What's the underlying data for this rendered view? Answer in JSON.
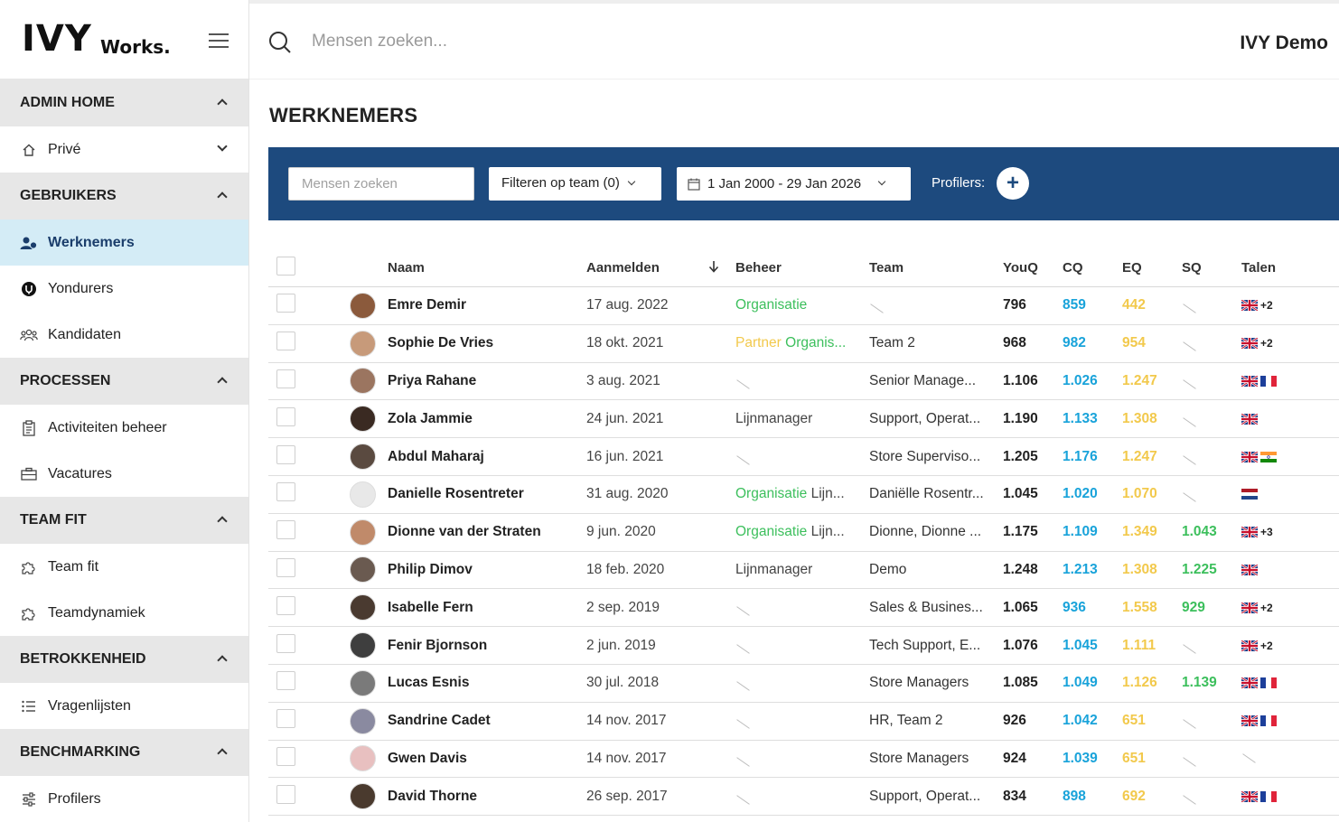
{
  "app": {
    "logo_main": "IVY",
    "logo_sub": "Works."
  },
  "topbar": {
    "search_placeholder": "Mensen zoeken...",
    "user": "IVY Demo"
  },
  "sidebar": {
    "sections": [
      {
        "title": "ADMIN HOME",
        "items": [
          {
            "label": "Privé",
            "icon": "home-icon"
          }
        ]
      },
      {
        "title": "GEBRUIKERS",
        "items": [
          {
            "label": "Werknemers",
            "icon": "users-icon",
            "active": true
          },
          {
            "label": "Yondurers",
            "icon": "yondurer-icon"
          },
          {
            "label": "Kandidaten",
            "icon": "group-icon"
          }
        ]
      },
      {
        "title": "PROCESSEN",
        "items": [
          {
            "label": "Activiteiten beheer",
            "icon": "clipboard-icon"
          },
          {
            "label": "Vacatures",
            "icon": "briefcase-icon"
          }
        ]
      },
      {
        "title": "TEAM FIT",
        "items": [
          {
            "label": "Team fit",
            "icon": "puzzle-icon"
          },
          {
            "label": "Teamdynamiek",
            "icon": "puzzle-icon"
          }
        ]
      },
      {
        "title": "BETROKKENHEID",
        "items": [
          {
            "label": "Vragenlijsten",
            "icon": "list-icon"
          }
        ]
      },
      {
        "title": "BENCHMARKING",
        "items": [
          {
            "label": "Profilers",
            "icon": "sliders-icon"
          }
        ]
      }
    ]
  },
  "page": {
    "title": "WERKNEMERS"
  },
  "filters": {
    "search_placeholder": "Mensen zoeken",
    "team_label": "Filteren op team (0)",
    "date_range": "1 Jan 2000 - 29 Jan 2026",
    "profilers_label": "Profilers:",
    "add_label": "+"
  },
  "table": {
    "headers": {
      "name": "Naam",
      "signup": "Aanmelden",
      "beheer": "Beheer",
      "team": "Team",
      "youq": "YouQ",
      "cq": "CQ",
      "eq": "EQ",
      "sq": "SQ",
      "talen": "Talen"
    },
    "rows": [
      {
        "name": "Emre Demir",
        "date": "17 aug. 2022",
        "beheer": [
          {
            "t": "Organisatie",
            "c": "green"
          }
        ],
        "team": "",
        "youq": "796",
        "cq": "859",
        "eq": "442",
        "sq": "",
        "flags": [
          "gb"
        ],
        "extra": "+2",
        "avatar": "#8b5a3c"
      },
      {
        "name": "Sophie De Vries",
        "date": "18 okt. 2021",
        "beheer": [
          {
            "t": "Partner ",
            "c": "yellow"
          },
          {
            "t": "Organis...",
            "c": "green"
          }
        ],
        "team": "Team 2",
        "youq": "968",
        "cq": "982",
        "eq": "954",
        "sq": "",
        "flags": [
          "gb"
        ],
        "extra": "+2",
        "avatar": "#c79a7a"
      },
      {
        "name": "Priya Rahane",
        "date": "3 aug. 2021",
        "beheer": [],
        "team": "Senior Manage...",
        "youq": "1.106",
        "cq": "1.026",
        "eq": "1.247",
        "sq": "",
        "flags": [
          "gb",
          "fr"
        ],
        "extra": "",
        "avatar": "#9b7560"
      },
      {
        "name": "Zola Jammie",
        "date": "24 jun. 2021",
        "beheer": [
          {
            "t": "Lijnmanager",
            "c": ""
          }
        ],
        "team": "Support, Operat...",
        "youq": "1.190",
        "cq": "1.133",
        "eq": "1.308",
        "sq": "",
        "flags": [
          "gb"
        ],
        "extra": "",
        "avatar": "#3a2a22"
      },
      {
        "name": "Abdul Maharaj",
        "date": "16 jun. 2021",
        "beheer": [],
        "team": "Store Superviso...",
        "youq": "1.205",
        "cq": "1.176",
        "eq": "1.247",
        "sq": "",
        "flags": [
          "gb",
          "in"
        ],
        "extra": "",
        "avatar": "#5a4a40"
      },
      {
        "name": "Danielle Rosentreter",
        "date": "31 aug. 2020",
        "beheer": [
          {
            "t": "Organisatie ",
            "c": "green"
          },
          {
            "t": "Lijn...",
            "c": ""
          }
        ],
        "team": "Daniëlle Rosentr...",
        "youq": "1.045",
        "cq": "1.020",
        "eq": "1.070",
        "sq": "",
        "flags": [
          "nl"
        ],
        "extra": "",
        "avatar": "#e8e8e8"
      },
      {
        "name": "Dionne van der Straten",
        "date": "9 jun. 2020",
        "beheer": [
          {
            "t": "Organisatie ",
            "c": "green"
          },
          {
            "t": "Lijn...",
            "c": ""
          }
        ],
        "team": "Dionne, Dionne ...",
        "youq": "1.175",
        "cq": "1.109",
        "eq": "1.349",
        "sq": "1.043",
        "flags": [
          "gb"
        ],
        "extra": "+3",
        "avatar": "#c08a6a"
      },
      {
        "name": "Philip Dimov",
        "date": "18 feb. 2020",
        "beheer": [
          {
            "t": "Lijnmanager",
            "c": ""
          }
        ],
        "team": "Demo",
        "youq": "1.248",
        "cq": "1.213",
        "eq": "1.308",
        "sq": "1.225",
        "flags": [
          "gb"
        ],
        "extra": "",
        "avatar": "#6a5a50"
      },
      {
        "name": "Isabelle Fern",
        "date": "2 sep. 2019",
        "beheer": [],
        "team": "Sales & Busines...",
        "youq": "1.065",
        "cq": "936",
        "eq": "1.558",
        "sq": "929",
        "flags": [
          "gb"
        ],
        "extra": "+2",
        "avatar": "#4a3a30"
      },
      {
        "name": "Fenir Bjornson",
        "date": "2 jun. 2019",
        "beheer": [],
        "team": "Tech Support, E...",
        "youq": "1.076",
        "cq": "1.045",
        "eq": "1.111",
        "sq": "",
        "flags": [
          "gb"
        ],
        "extra": "+2",
        "avatar": "#3e3e3e"
      },
      {
        "name": "Lucas Esnis",
        "date": "30 jul. 2018",
        "beheer": [],
        "team": "Store Managers",
        "youq": "1.085",
        "cq": "1.049",
        "eq": "1.126",
        "sq": "1.139",
        "flags": [
          "gb",
          "fr"
        ],
        "extra": "",
        "avatar": "#7a7a7a"
      },
      {
        "name": "Sandrine Cadet",
        "date": "14 nov. 2017",
        "beheer": [],
        "team": "HR, Team 2",
        "youq": "926",
        "cq": "1.042",
        "eq": "651",
        "sq": "",
        "flags": [
          "gb",
          "fr"
        ],
        "extra": "",
        "avatar": "#8a8aa0"
      },
      {
        "name": "Gwen Davis",
        "date": "14 nov. 2017",
        "beheer": [],
        "team": "Store Managers",
        "youq": "924",
        "cq": "1.039",
        "eq": "651",
        "sq": "",
        "flags": [],
        "extra": "",
        "avatar": "#e8c0c0"
      },
      {
        "name": "David Thorne",
        "date": "26 sep. 2017",
        "beheer": [],
        "team": "Support, Operat...",
        "youq": "834",
        "cq": "898",
        "eq": "692",
        "sq": "",
        "flags": [
          "gb",
          "fr"
        ],
        "extra": "",
        "avatar": "#4a3a2e"
      }
    ]
  }
}
